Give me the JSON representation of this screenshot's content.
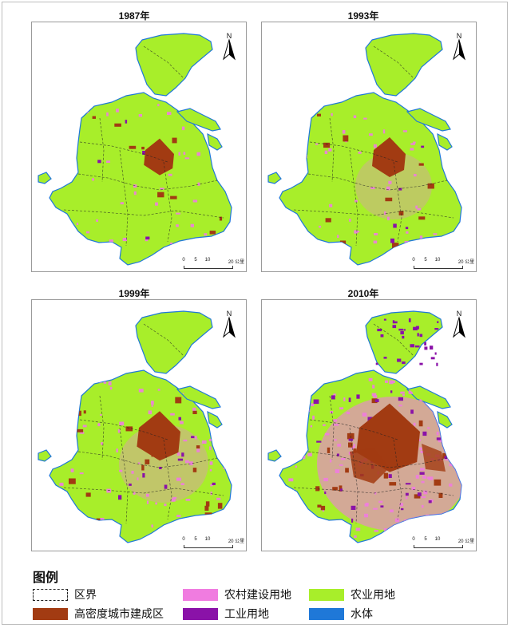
{
  "panels": [
    {
      "year": "1987年",
      "north": "N",
      "scale_labels": [
        "0",
        "5",
        "10",
        "20 公里"
      ]
    },
    {
      "year": "1993年",
      "north": "N",
      "scale_labels": [
        "0",
        "5",
        "10",
        "20 公里"
      ]
    },
    {
      "year": "1999年",
      "north": "N",
      "scale_labels": [
        "0",
        "5",
        "10",
        "20 公里"
      ]
    },
    {
      "year": "2010年",
      "north": "N",
      "scale_labels": [
        "0",
        "5",
        "10",
        "20 公里"
      ]
    }
  ],
  "legend": {
    "title": "图例",
    "items": [
      {
        "label": "区界",
        "color": "#ffffff",
        "style": "dashed"
      },
      {
        "label": "农村建设用地",
        "color": "#f07ce0"
      },
      {
        "label": "农业用地",
        "color": "#a8ee2a"
      },
      {
        "label": "高密度城市建成区",
        "color": "#a23b12"
      },
      {
        "label": "工业用地",
        "color": "#8a12a8"
      },
      {
        "label": "水体",
        "color": "#1f78d8"
      }
    ]
  },
  "colors": {
    "agri": "#a8ee2a",
    "urban": "#a23b12",
    "rural": "#f07ce0",
    "industrial": "#8a12a8",
    "water": "#1f78d8"
  }
}
